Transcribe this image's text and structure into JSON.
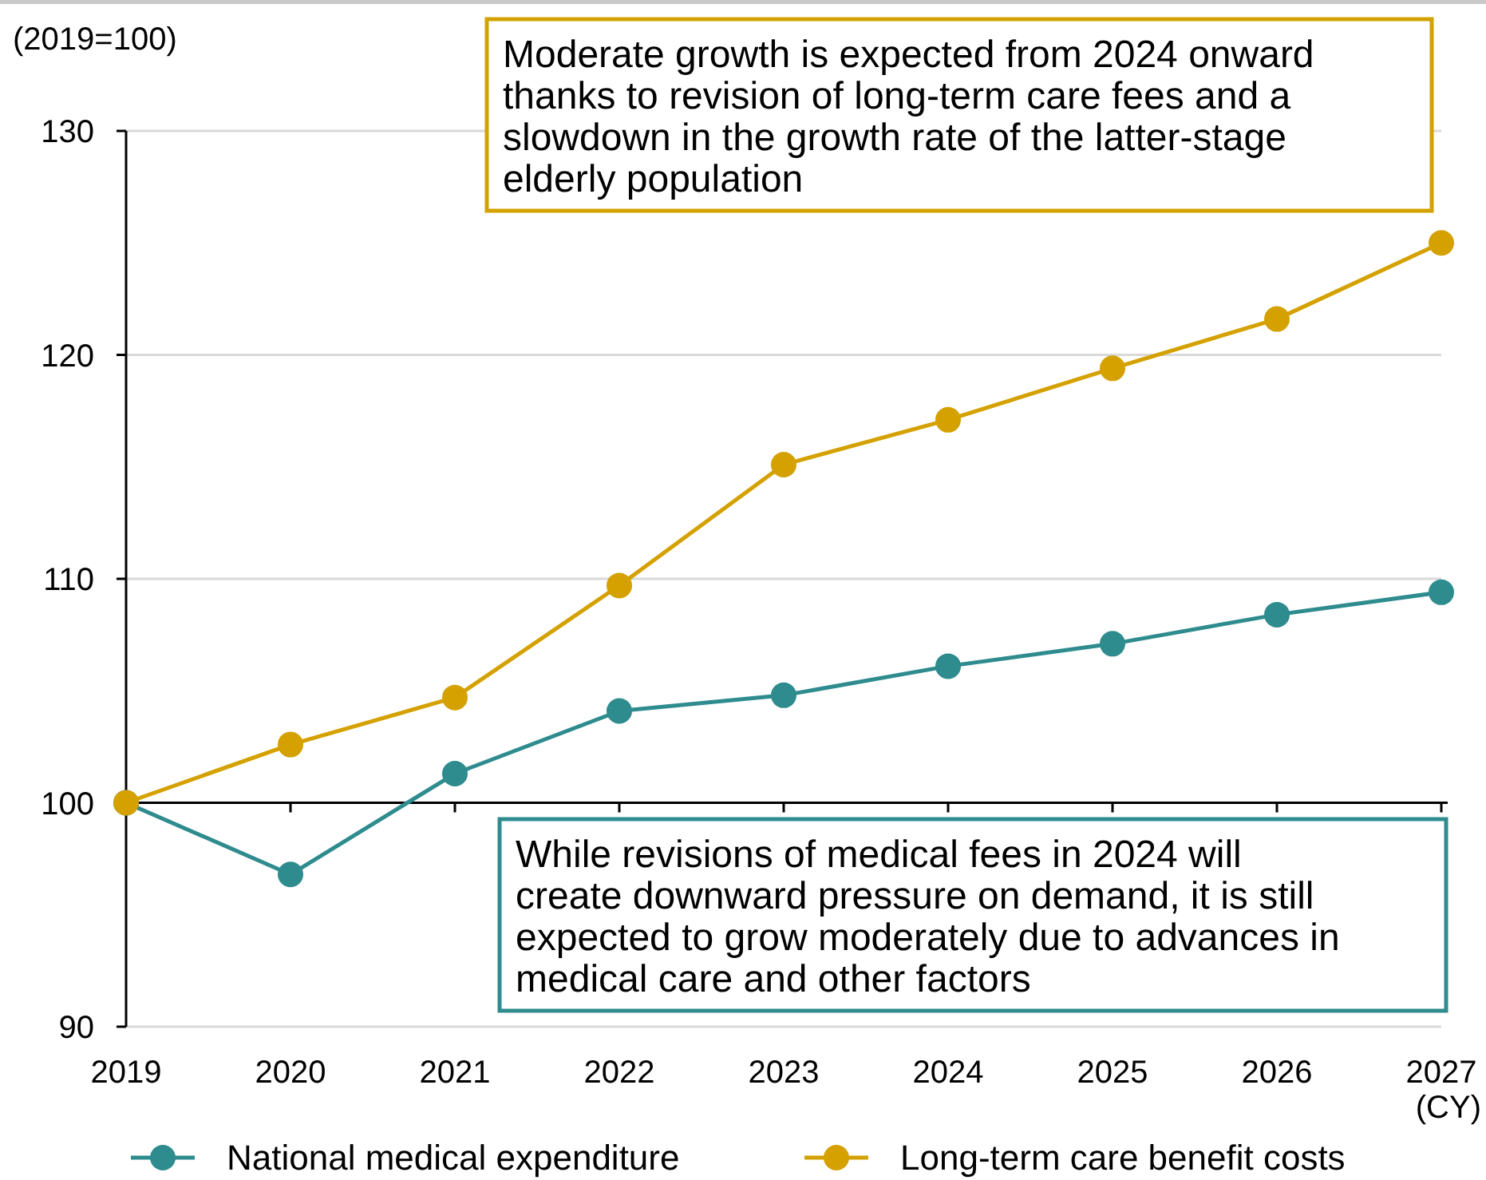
{
  "chart_data": {
    "type": "line",
    "ylabel": "(2019=100)",
    "xlabel": "(CY)",
    "categories": [
      "2019",
      "2020",
      "2021",
      "2022",
      "2023",
      "2024",
      "2025",
      "2026",
      "2027"
    ],
    "series": [
      {
        "name": "National medical expenditure",
        "color": "#2e8b8e",
        "values": [
          100,
          96.8,
          101.3,
          104.1,
          104.8,
          106.1,
          107.1,
          108.4,
          109.4
        ]
      },
      {
        "name": "Long-term care benefit costs",
        "color": "#d4a100",
        "values": [
          100,
          102.6,
          104.7,
          109.7,
          115.1,
          117.1,
          119.4,
          121.6,
          125.0
        ]
      }
    ],
    "ref_lines": [
      {
        "axis": "y",
        "value": 100,
        "color": "#000000"
      }
    ],
    "ylim": [
      90,
      130
    ],
    "yticks": [
      90,
      100,
      110,
      120,
      130
    ],
    "grid": "y",
    "marker": "circle",
    "line_style": "solid",
    "legend": "bottom",
    "annotations": [
      "Moderate growth is expected from 2024 onward thanks to revision of long-term care fees and a slowdown in the growth rate of the latter-stage elderly population",
      "While revisions of medical fees in 2024 will create downward pressure on demand, it is still expected to grow moderately due to advances in medical care and other factors"
    ]
  }
}
